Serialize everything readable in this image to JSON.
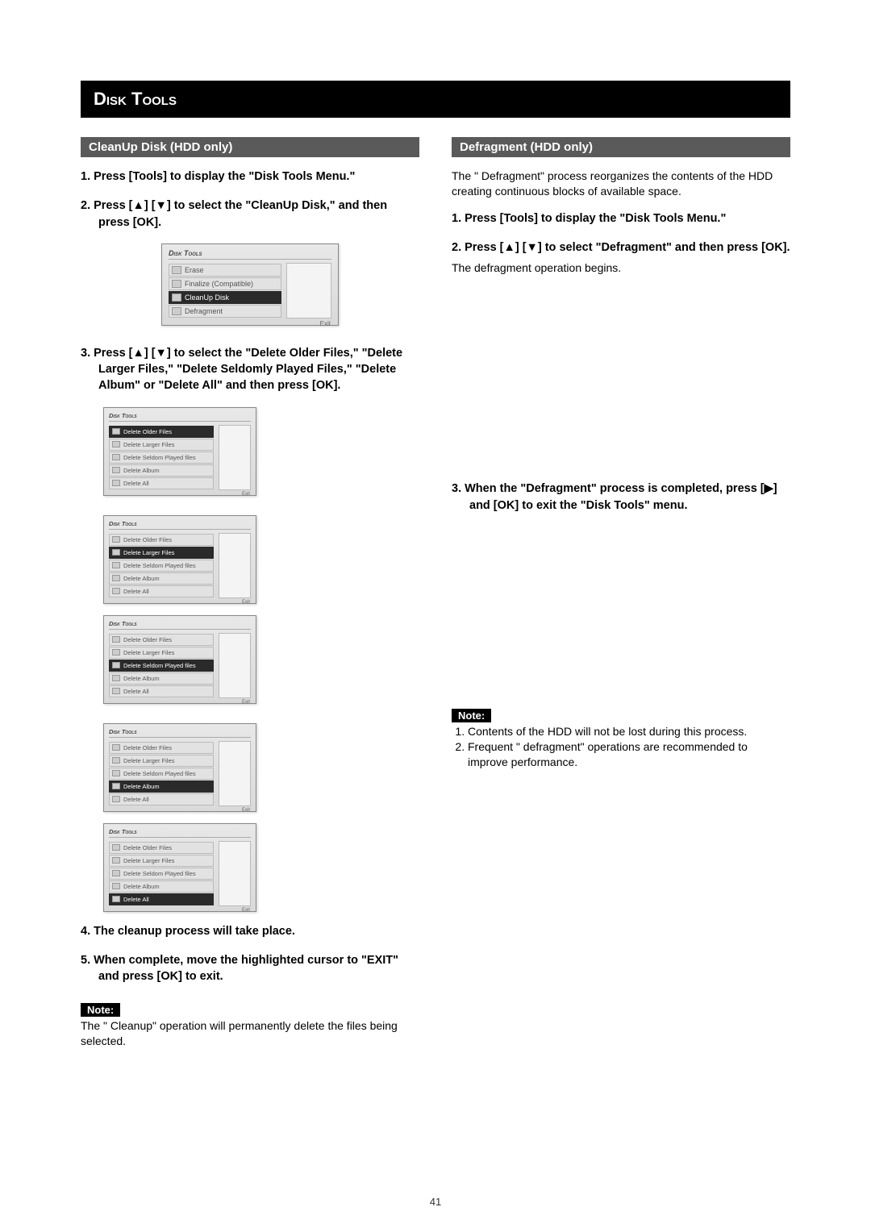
{
  "page_title": "Disk Tools",
  "page_number": "41",
  "left": {
    "section_header": "CleanUp Disk (HDD only)",
    "steps": [
      "1.  Press [Tools] to display the \"Disk Tools Menu.\"",
      "2.  Press [▲]  [▼] to select the \"CleanUp Disk,\" and then press [OK].",
      "3.  Press [▲]  [▼] to select the \"Delete Older Files,\" \"Delete Larger Files,\" \"Delete Seldomly Played Files,\" \"Delete Album\" or \"Delete All\" and then press [OK].",
      "4.  The cleanup process will take place.",
      "5.  When complete, move the highlighted cursor to \"EXIT\" and press [OK] to exit."
    ],
    "note_label": "Note:",
    "note_text": "The \" Cleanup\"  operation will permanently delete the files being selected."
  },
  "right": {
    "section_header": "Defragment  (HDD only)",
    "intro": "The \" Defragment\"  process reorganizes the contents of the HDD creating continuous blocks of available space.",
    "steps": [
      "1.  Press [Tools] to display the \"Disk Tools Menu.\"",
      "2.  Press [▲]  [▼] to select \"Defragment\" and then press [OK].",
      "3.  When the \"Defragment\" process is completed, press [▶] and [OK] to exit the \"Disk Tools\" menu."
    ],
    "sub_after_step2": "The defragment operation begins.",
    "note_label": "Note:",
    "note_items": [
      "Contents of the HDD will not be lost during this process.",
      "Frequent \" defragment\"  operations are recommended to improve performance."
    ]
  },
  "popup_main": {
    "title": "Disk Tools",
    "items": [
      "Erase",
      "Finalize (Compatible)",
      "CleanUp Disk",
      "Defragment"
    ],
    "selected_index": 2,
    "exit_label": "Exit"
  },
  "cleanup_menu": {
    "title": "Disk Tools",
    "items": [
      "Delete Older Files",
      "Delete Larger Files",
      "Delete Seldom Played files",
      "Delete Album",
      "Delete All"
    ],
    "exit_label": "Exit"
  },
  "cleanup_grid_selected": [
    0,
    1,
    2,
    3,
    4
  ],
  "colors": {
    "page_header_bg": "#000000",
    "page_header_fg": "#ffffff",
    "section_header_bg": "#5a5a5a",
    "section_header_fg": "#ffffff",
    "note_bg": "#000000",
    "note_fg": "#ffffff",
    "popup_bg": "#e0e0e0",
    "popup_sel_bg": "#2a2a2a",
    "popup_sel_fg": "#ffffff",
    "body_text": "#000000"
  },
  "typography": {
    "title_fontsize_pt": 17,
    "section_header_fontsize_pt": 11,
    "body_fontsize_pt": 10.5,
    "step_fontsize_pt": 11,
    "popup_fontsize_pt": 7
  }
}
